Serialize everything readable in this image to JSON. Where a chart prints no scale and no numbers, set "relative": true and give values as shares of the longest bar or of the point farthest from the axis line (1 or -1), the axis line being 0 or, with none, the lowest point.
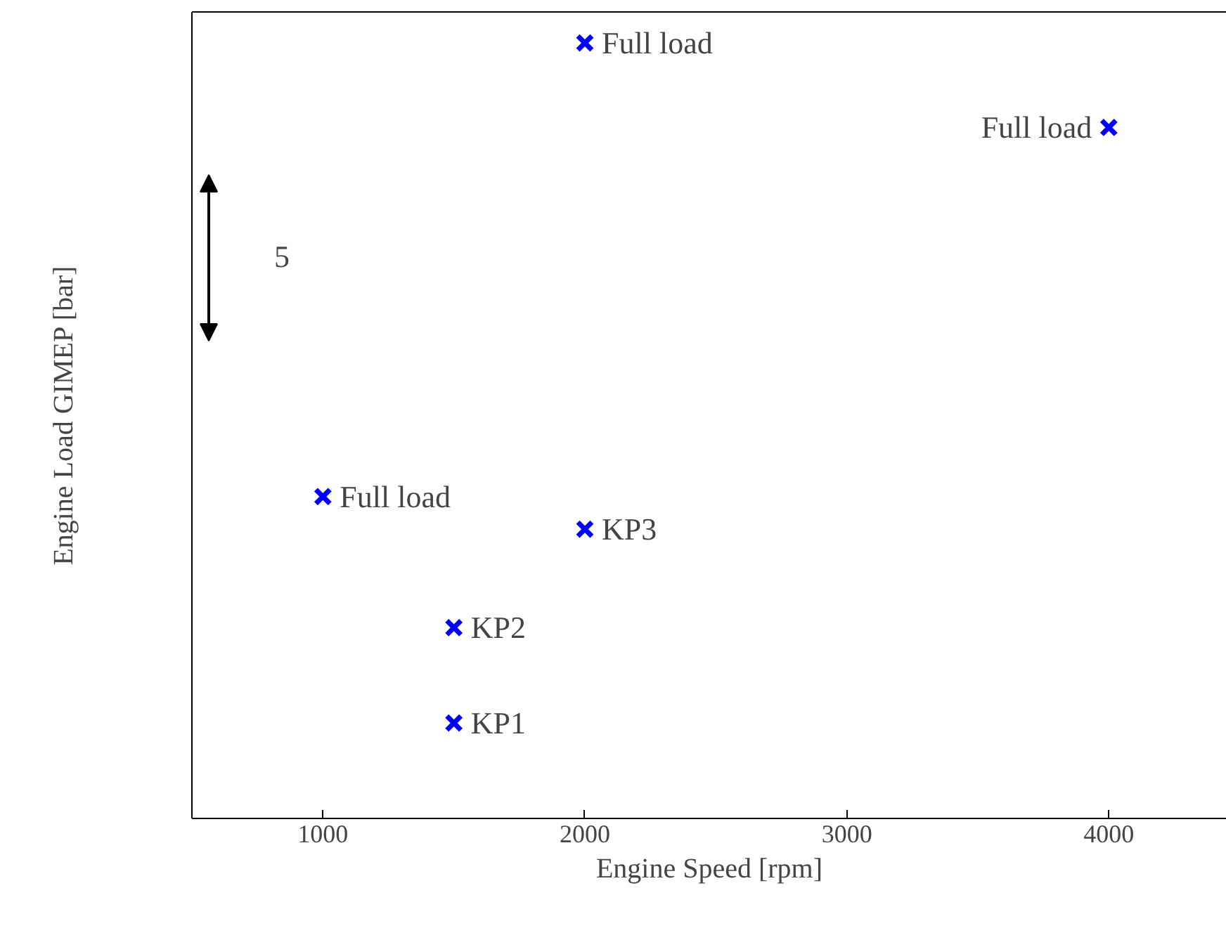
{
  "chart_data": {
    "type": "scatter",
    "xlabel": "Engine Speed [rpm]",
    "ylabel": "Engine Load GIMEP [bar]",
    "relative": true,
    "marker": "cross",
    "grid": false,
    "x": [
      2000,
      4000,
      1000,
      2000,
      1500,
      1500
    ],
    "xlim": [
      500,
      4450
    ],
    "xticks": [
      1000,
      2000,
      3000,
      4000
    ],
    "series": [
      {
        "color": "#0000ff",
        "values": [
          1,
          0.891,
          0.415,
          0.373,
          0.246,
          0.123
        ]
      }
    ],
    "annotations": [
      {
        "text": "Full load",
        "x": 2000,
        "y": 1
      },
      {
        "text": "Full load",
        "x": 4000,
        "y": 0.891
      },
      {
        "text": "Full load",
        "x": 1000,
        "y": 0.415
      },
      {
        "text": "KP3",
        "x": 2000,
        "y": 0.373
      },
      {
        "text": "KP2",
        "x": 1500,
        "y": 0.246
      },
      {
        "text": "KP1",
        "x": 1500,
        "y": 0.123
      },
      "5"
    ]
  }
}
